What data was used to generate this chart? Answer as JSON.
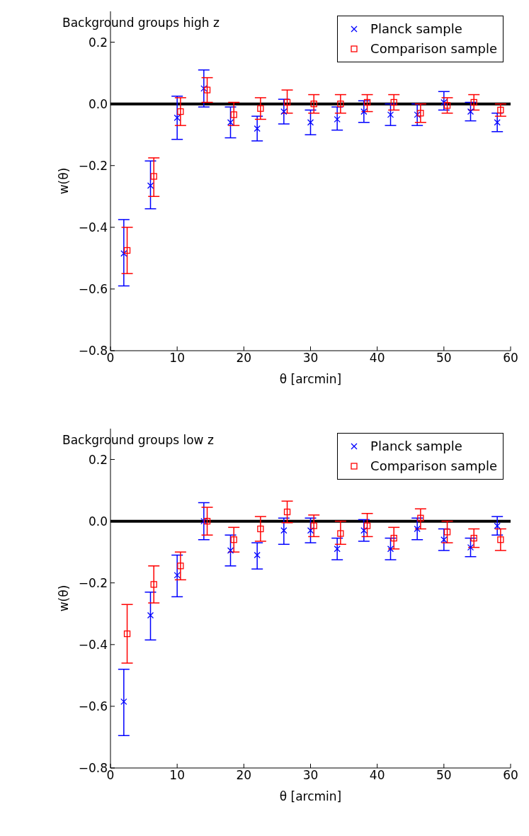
{
  "chart_data": [
    {
      "type": "scatter",
      "title": "Background groups high z",
      "xlabel": "θ [arcmin]",
      "ylabel": "w(θ)",
      "xlim": [
        0,
        60
      ],
      "xticks": [
        0,
        10,
        20,
        30,
        40,
        50,
        60
      ],
      "ylim": [
        -0.8,
        0.3
      ],
      "yticks": [
        -0.8,
        -0.6,
        -0.4,
        -0.2,
        {
          "value": 0,
          "label": "0.0"
        },
        0.2
      ],
      "legend": "top right",
      "grid": false,
      "ref_lines": [
        {
          "axis": "y",
          "value": 0,
          "color": "#000000"
        }
      ],
      "series": [
        {
          "name": "Planck sample",
          "color": "#0000ff",
          "marker": "cross",
          "x": [
            2,
            6,
            10,
            14,
            18,
            22,
            26,
            30,
            34,
            38,
            42,
            46,
            50,
            54,
            58
          ],
          "values": [
            -0.485,
            -0.265,
            -0.045,
            0.05,
            -0.06,
            -0.08,
            -0.025,
            -0.06,
            -0.05,
            -0.025,
            -0.035,
            -0.035,
            0.005,
            -0.025,
            -0.06
          ],
          "errors": [
            [
              -0.59,
              -0.375
            ],
            [
              -0.34,
              -0.185
            ],
            [
              -0.115,
              0.025
            ],
            [
              -0.01,
              0.11
            ],
            [
              -0.11,
              -0.01
            ],
            [
              -0.12,
              -0.04
            ],
            [
              -0.065,
              0.015
            ],
            [
              -0.1,
              -0.02
            ],
            [
              -0.085,
              -0.01
            ],
            [
              -0.06,
              0.01
            ],
            [
              -0.07,
              0.0
            ],
            [
              -0.07,
              0.0
            ],
            [
              -0.02,
              0.04
            ],
            [
              -0.055,
              0.005
            ],
            [
              -0.09,
              -0.03
            ]
          ]
        },
        {
          "name": "Comparison sample",
          "color": "#ff0000",
          "marker": "square",
          "x": [
            2.5,
            6.5,
            10.5,
            14.5,
            18.5,
            22.5,
            26.5,
            30.5,
            34.5,
            38.5,
            42.5,
            46.5,
            50.5,
            54.5,
            58.5
          ],
          "values": [
            -0.475,
            -0.235,
            -0.025,
            0.045,
            -0.035,
            -0.015,
            0.005,
            0.0,
            0.0,
            0.005,
            0.005,
            -0.03,
            -0.005,
            0.005,
            -0.02
          ],
          "errors": [
            [
              -0.55,
              -0.4
            ],
            [
              -0.3,
              -0.175
            ],
            [
              -0.07,
              0.02
            ],
            [
              0.005,
              0.085
            ],
            [
              -0.07,
              0.005
            ],
            [
              -0.05,
              0.02
            ],
            [
              -0.03,
              0.045
            ],
            [
              -0.03,
              0.03
            ],
            [
              -0.03,
              0.03
            ],
            [
              -0.025,
              0.03
            ],
            [
              -0.02,
              0.03
            ],
            [
              -0.06,
              0.0
            ],
            [
              -0.03,
              0.02
            ],
            [
              -0.02,
              0.03
            ],
            [
              -0.04,
              0.0
            ]
          ]
        }
      ]
    },
    {
      "type": "scatter",
      "title": "Background groups low z",
      "xlabel": "θ [arcmin]",
      "ylabel": "w(θ)",
      "xlim": [
        0,
        60
      ],
      "xticks": [
        0,
        10,
        20,
        30,
        40,
        50,
        60
      ],
      "ylim": [
        -0.8,
        0.3
      ],
      "yticks": [
        -0.8,
        -0.6,
        -0.4,
        -0.2,
        {
          "value": 0,
          "label": "0.0"
        },
        0.2
      ],
      "legend": "top right",
      "grid": false,
      "ref_lines": [
        {
          "axis": "y",
          "value": 0,
          "color": "#000000"
        }
      ],
      "series": [
        {
          "name": "Planck sample",
          "color": "#0000ff",
          "marker": "cross",
          "x": [
            2,
            6,
            10,
            14,
            18,
            22,
            26,
            30,
            34,
            38,
            42,
            46,
            50,
            54,
            58
          ],
          "values": [
            -0.585,
            -0.305,
            -0.175,
            0.0,
            -0.095,
            -0.11,
            -0.03,
            -0.03,
            -0.09,
            -0.03,
            -0.09,
            -0.025,
            -0.06,
            -0.085,
            -0.015
          ],
          "errors": [
            [
              -0.695,
              -0.48
            ],
            [
              -0.385,
              -0.23
            ],
            [
              -0.245,
              -0.11
            ],
            [
              -0.06,
              0.06
            ],
            [
              -0.145,
              -0.045
            ],
            [
              -0.155,
              -0.07
            ],
            [
              -0.075,
              0.01
            ],
            [
              -0.07,
              0.01
            ],
            [
              -0.125,
              -0.055
            ],
            [
              -0.065,
              0.005
            ],
            [
              -0.125,
              -0.055
            ],
            [
              -0.06,
              0.01
            ],
            [
              -0.095,
              -0.025
            ],
            [
              -0.115,
              -0.055
            ],
            [
              -0.045,
              0.015
            ]
          ]
        },
        {
          "name": "Comparison sample",
          "color": "#ff0000",
          "marker": "square",
          "x": [
            2.5,
            6.5,
            10.5,
            14.5,
            18.5,
            22.5,
            26.5,
            30.5,
            34.5,
            38.5,
            42.5,
            46.5,
            50.5,
            54.5,
            58.5
          ],
          "values": [
            -0.365,
            -0.205,
            -0.145,
            0.0,
            -0.06,
            -0.025,
            0.03,
            -0.015,
            -0.04,
            -0.015,
            -0.055,
            0.01,
            -0.035,
            -0.055,
            -0.06
          ],
          "errors": [
            [
              -0.46,
              -0.27
            ],
            [
              -0.265,
              -0.145
            ],
            [
              -0.19,
              -0.1
            ],
            [
              -0.045,
              0.045
            ],
            [
              -0.1,
              -0.02
            ],
            [
              -0.065,
              0.015
            ],
            [
              -0.005,
              0.065
            ],
            [
              -0.05,
              0.02
            ],
            [
              -0.075,
              0.0
            ],
            [
              -0.05,
              0.025
            ],
            [
              -0.09,
              -0.02
            ],
            [
              -0.025,
              0.04
            ],
            [
              -0.07,
              0.0
            ],
            [
              -0.085,
              -0.025
            ],
            [
              -0.095,
              -0.025
            ]
          ]
        }
      ]
    }
  ]
}
